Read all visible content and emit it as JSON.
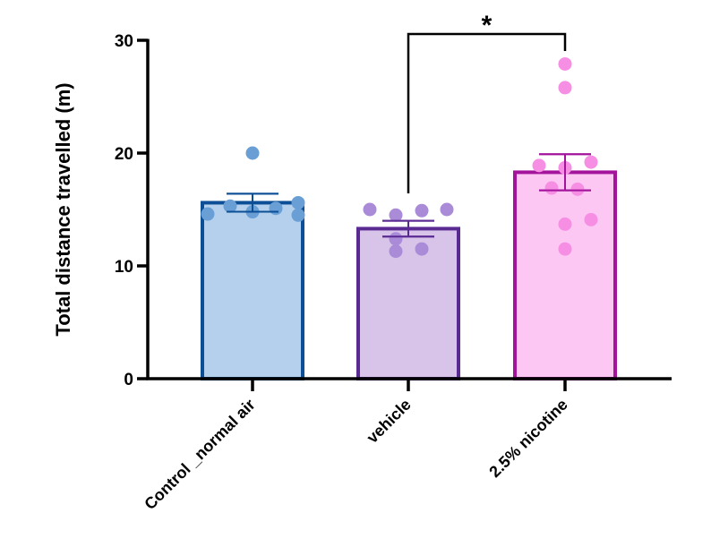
{
  "chart_data": {
    "type": "bar",
    "title": "",
    "xlabel": "",
    "ylabel": "Total distance travelled (m)",
    "ylim": [
      0,
      30
    ],
    "yticks": [
      0,
      10,
      20,
      30
    ],
    "grid": false,
    "categories": [
      "Control _normal air",
      "vehicle",
      "2.5% nicotine"
    ],
    "values": [
      15.6,
      13.3,
      18.3
    ],
    "sem": [
      0.8,
      0.7,
      1.6
    ],
    "colors": {
      "fill": [
        "#b4d0ec",
        "#d8c4e9",
        "#fdc7f4"
      ],
      "stroke": [
        "#0c4f96",
        "#5a2a93",
        "#a3139b"
      ],
      "points": [
        "#6a9fd6",
        "#a98bd8",
        "#f68fe3"
      ]
    },
    "points": [
      [
        14.6,
        15.3,
        20.0,
        14.8,
        15.1,
        15.6,
        14.5
      ],
      [
        15.0,
        14.5,
        12.4,
        11.3,
        14.9,
        11.5,
        15.0
      ],
      [
        27.9,
        25.8,
        18.9,
        18.7,
        19.2,
        16.9,
        16.8,
        13.7,
        14.1,
        11.5
      ]
    ],
    "annotations": [
      {
        "type": "significance",
        "from": "vehicle",
        "to": "2.5% nicotine",
        "label": "*"
      }
    ]
  }
}
